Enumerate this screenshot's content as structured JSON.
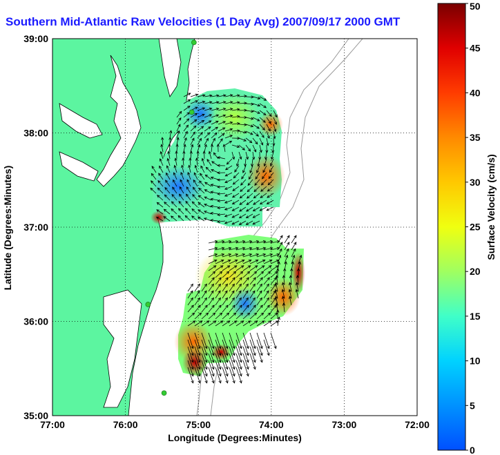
{
  "title": "Southern Mid-Atlantic Raw Velocities (1 Day Avg) 2007/09/17 2000 GMT",
  "xlabel": "Longitude (Degrees:Minutes)",
  "ylabel": "Latitude (Degrees:Minutes)",
  "colorbar_label": "Surface Velocity (cm/s)",
  "x_ticks": [
    "77:00",
    "76:00",
    "75:00",
    "74:00",
    "73:00",
    "72:00"
  ],
  "y_ticks": [
    "39:00",
    "38:00",
    "37:00",
    "36:00",
    "35:00"
  ],
  "colorbar_ticks": [
    "0",
    "5",
    "10",
    "15",
    "20",
    "25",
    "30",
    "35",
    "40",
    "45",
    "50"
  ],
  "colors": {
    "land": "#5cf5a0",
    "title": "#1a1aff",
    "coast": "#000000",
    "bathymetry": "#9a9a9a",
    "station": "#33cc33"
  },
  "map": {
    "lon_range": [
      -77,
      -72
    ],
    "lat_range": [
      35,
      39
    ],
    "color_range_cm_s": [
      0,
      50
    ],
    "grid": "dotted"
  },
  "stations": [
    {
      "lon": -75.06,
      "lat": 38.96
    },
    {
      "lon": -75.09,
      "lat": 38.22
    },
    {
      "lon": -75.69,
      "lat": 36.18
    },
    {
      "lon": -75.47,
      "lat": 35.24
    }
  ]
}
